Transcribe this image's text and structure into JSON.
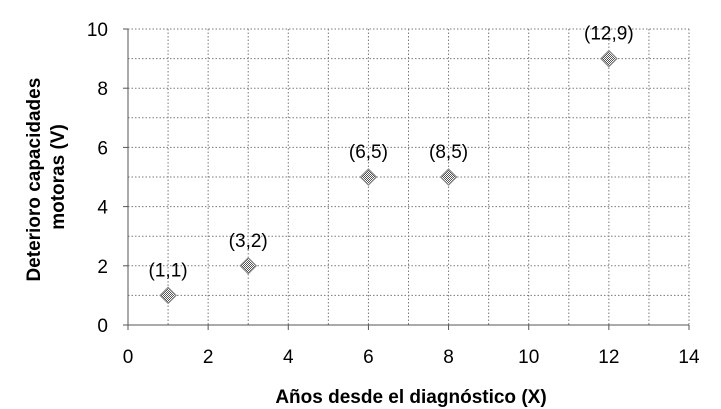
{
  "chart_data": {
    "type": "scatter",
    "title": "",
    "xlabel": "Años desde el diagnóstico (X)",
    "ylabel_lines": [
      "Deterioro capacidades",
      "motoras (V)"
    ],
    "xlim": [
      0,
      14
    ],
    "ylim": [
      0,
      10
    ],
    "xticks": [
      0,
      2,
      4,
      6,
      8,
      10,
      12,
      14
    ],
    "yticks": [
      0,
      2,
      4,
      6,
      8,
      10
    ],
    "grid": true,
    "marker": "diamond",
    "marker_color": "#8a8a8a",
    "points": [
      {
        "x": 1,
        "y": 1,
        "label": "(1,1)"
      },
      {
        "x": 3,
        "y": 2,
        "label": "(3,2)"
      },
      {
        "x": 6,
        "y": 5,
        "label": "(6,5)"
      },
      {
        "x": 8,
        "y": 5,
        "label": "(8,5)"
      },
      {
        "x": 12,
        "y": 9,
        "label": "(12,9)"
      }
    ]
  }
}
